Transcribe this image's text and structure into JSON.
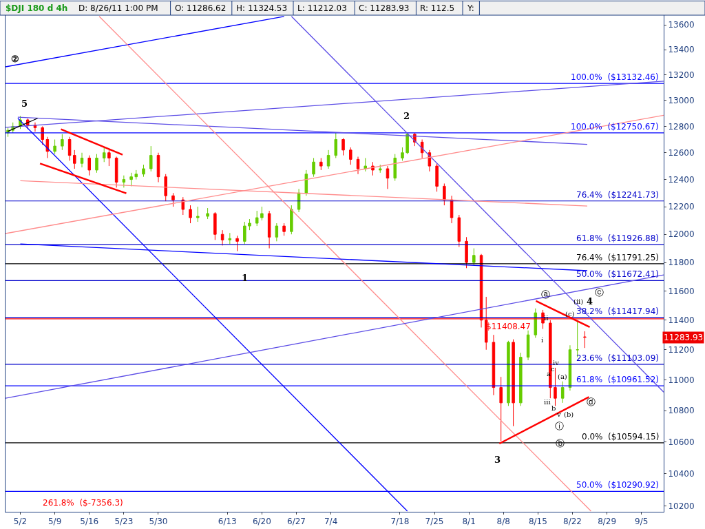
{
  "chart_data": {
    "type": "candlestick",
    "title": "$DJI 180 d 4h",
    "log": true,
    "ylim": [
      10166,
      13680
    ],
    "yticks": [
      10200,
      10400,
      10600,
      10800,
      11000,
      11200,
      11400,
      11600,
      11800,
      12000,
      12200,
      12400,
      12600,
      12800,
      13000,
      13200,
      13400,
      13600
    ],
    "xlim": [
      "--04-29",
      "--09-09T12:00"
    ],
    "xticks": [
      {
        "value": "--05-02",
        "label": "5/2"
      },
      {
        "value": "--05-09",
        "label": "5/9"
      },
      {
        "value": "--05-16",
        "label": "5/16"
      },
      {
        "value": "--05-23",
        "label": "5/23"
      },
      {
        "value": "--05-30",
        "label": "5/30"
      },
      {
        "value": "--06-13",
        "label": "6/13"
      },
      {
        "value": "--06-20",
        "label": "6/20"
      },
      {
        "value": "--06-27",
        "label": "6/27"
      },
      {
        "value": "--07-04",
        "label": "7/4"
      },
      {
        "value": "--07-18",
        "label": "7/18"
      },
      {
        "value": "--07-25",
        "label": "7/25"
      },
      {
        "value": "--08-01",
        "label": "8/1"
      },
      {
        "value": "--08-08",
        "label": "8/8"
      },
      {
        "value": "--08-15",
        "label": "8/15"
      },
      {
        "value": "--08-22",
        "label": "8/22"
      },
      {
        "value": "--08-29",
        "label": "8/29"
      },
      {
        "value": "--09-05",
        "label": "9/5"
      }
    ],
    "x": [
      "--04-29T12:00",
      "--04-30T12:00",
      "--05-02T00:00",
      "--05-03T12:00",
      "--05-05T00:00",
      "--05-06T12:00",
      "--05-07T12:00",
      "--05-09T00:00",
      "--05-10T12:00",
      "--05-12T00:00",
      "--05-13T00:00",
      "--05-14T12:00",
      "--05-16T00:00",
      "--05-17T12:00",
      "--05-19T00:00",
      "--05-20T00:00",
      "--05-21T12:00",
      "--05-23T00:00",
      "--05-24T12:00",
      "--05-25T12:00",
      "--05-27T00:00",
      "--05-28T12:00",
      "--05-30T00:00",
      "--05-31T12:00",
      "--06-02T00:00",
      "--06-04T00:00",
      "--06-05T12:00",
      "--06-07T00:00",
      "--06-09T00:00",
      "--06-10T12:00",
      "--06-12T00:00",
      "--06-13T12:00",
      "--06-15T00:00",
      "--06-16T12:00",
      "--06-17T12:00",
      "--06-19T00:00",
      "--06-20T00:00",
      "--06-21T12:00",
      "--06-23T00:00",
      "--06-24T12:00",
      "--06-26T00:00",
      "--06-27T12:00",
      "--06-29T00:00",
      "--06-30T12:00",
      "--07-02T00:00",
      "--07-03T12:00",
      "--07-05T00:00",
      "--07-06T12:00",
      "--07-08T00:00",
      "--07-09T12:00",
      "--07-11T00:00",
      "--07-12T12:00",
      "--07-14T00:00",
      "--07-15T12:00",
      "--07-17T00:00",
      "--07-18T12:00",
      "--07-19T12:00",
      "--07-21T00:00",
      "--07-22T12:00",
      "--07-24T00:00",
      "--07-25T12:00",
      "--07-27T00:00",
      "--07-28T12:00",
      "--07-30T00:00",
      "--07-31T12:00",
      "--08-02T00:00",
      "--08-03T12:00",
      "--08-04T12:00",
      "--08-06T00:00",
      "--08-07T12:00",
      "--08-09T00:00",
      "--08-10T00:00",
      "--08-11T12:00",
      "--08-13T00:00",
      "--08-14T12:00",
      "--08-16T00:00",
      "--08-17T12:00",
      "--08-18T12:00",
      "--08-20T00:00",
      "--08-21T12:00",
      "--08-23T00:00",
      "--08-24T12:00"
    ],
    "ohlc": [
      [
        12750,
        12790,
        12720,
        12770
      ],
      [
        12770,
        12830,
        12750,
        12800
      ],
      [
        12800,
        12880,
        12780,
        12850
      ],
      [
        12850,
        12860,
        12780,
        12810
      ],
      [
        12810,
        12830,
        12760,
        12790
      ],
      [
        12790,
        12800,
        12660,
        12700
      ],
      [
        12700,
        12720,
        12560,
        12610
      ],
      [
        12610,
        12700,
        12590,
        12650
      ],
      [
        12650,
        12740,
        12620,
        12700
      ],
      [
        12700,
        12720,
        12540,
        12580
      ],
      [
        12580,
        12620,
        12480,
        12520
      ],
      [
        12520,
        12600,
        12490,
        12560
      ],
      [
        12560,
        12580,
        12430,
        12470
      ],
      [
        12470,
        12590,
        12450,
        12560
      ],
      [
        12560,
        12640,
        12530,
        12600
      ],
      [
        12600,
        12620,
        12500,
        12560
      ],
      [
        12560,
        12570,
        12340,
        12380
      ],
      [
        12380,
        12430,
        12340,
        12400
      ],
      [
        12400,
        12450,
        12350,
        12420
      ],
      [
        12420,
        12470,
        12400,
        12440
      ],
      [
        12440,
        12510,
        12420,
        12480
      ],
      [
        12480,
        12650,
        12460,
        12580
      ],
      [
        12580,
        12600,
        12380,
        12420
      ],
      [
        12420,
        12440,
        12240,
        12280
      ],
      [
        12280,
        12300,
        12200,
        12250
      ],
      [
        12250,
        12270,
        12140,
        12180
      ],
      [
        12180,
        12210,
        12080,
        12120
      ],
      [
        12120,
        12200,
        12090,
        12130
      ],
      [
        12130,
        12190,
        12110,
        12150
      ],
      [
        12150,
        12160,
        11960,
        12000
      ],
      [
        12000,
        12030,
        11920,
        11960
      ],
      [
        11960,
        12010,
        11930,
        11970
      ],
      [
        11970,
        11990,
        11880,
        11950
      ],
      [
        11950,
        12090,
        11930,
        12060
      ],
      [
        12060,
        12110,
        12030,
        12080
      ],
      [
        12080,
        12170,
        12060,
        12120
      ],
      [
        12120,
        12200,
        12100,
        12150
      ],
      [
        12150,
        12170,
        11900,
        11980
      ],
      [
        11980,
        12080,
        11950,
        12060
      ],
      [
        12060,
        12080,
        11990,
        12020
      ],
      [
        12020,
        12210,
        12000,
        12180
      ],
      [
        12180,
        12330,
        12160,
        12300
      ],
      [
        12300,
        12470,
        12280,
        12440
      ],
      [
        12440,
        12560,
        12420,
        12530
      ],
      [
        12530,
        12560,
        12470,
        12500
      ],
      [
        12500,
        12620,
        12480,
        12580
      ],
      [
        12580,
        12750,
        12560,
        12700
      ],
      [
        12700,
        12710,
        12580,
        12620
      ],
      [
        12620,
        12640,
        12510,
        12550
      ],
      [
        12550,
        12570,
        12440,
        12480
      ],
      [
        12480,
        12560,
        12460,
        12500
      ],
      [
        12500,
        12530,
        12430,
        12470
      ],
      [
        12470,
        12510,
        12450,
        12480
      ],
      [
        12480,
        12500,
        12330,
        12410
      ],
      [
        12410,
        12590,
        12390,
        12560
      ],
      [
        12560,
        12640,
        12540,
        12600
      ],
      [
        12600,
        12750,
        12590,
        12740
      ],
      [
        12740,
        12750,
        12650,
        12680
      ],
      [
        12680,
        12700,
        12560,
        12600
      ],
      [
        12600,
        12620,
        12460,
        12500
      ],
      [
        12500,
        12520,
        12310,
        12350
      ],
      [
        12350,
        12370,
        12210,
        12250
      ],
      [
        12250,
        12280,
        12080,
        12120
      ],
      [
        12120,
        12140,
        11910,
        11950
      ],
      [
        11950,
        11980,
        11760,
        11800
      ],
      [
        11800,
        11900,
        11780,
        11850
      ],
      [
        11850,
        11860,
        11350,
        11400
      ],
      [
        11400,
        11560,
        11200,
        11250
      ],
      [
        11250,
        11300,
        10900,
        10950
      ],
      [
        10950,
        11020,
        10605,
        10850
      ],
      [
        10850,
        11260,
        10830,
        11250
      ],
      [
        11250,
        11270,
        10700,
        10850
      ],
      [
        10850,
        11180,
        10830,
        11150
      ],
      [
        11150,
        11330,
        11130,
        11300
      ],
      [
        11300,
        11480,
        11280,
        11450
      ],
      [
        11450,
        11470,
        11340,
        11380
      ],
      [
        11380,
        11400,
        10880,
        10950
      ],
      [
        10950,
        11080,
        10830,
        10880
      ],
      [
        10880,
        10990,
        10850,
        10950
      ],
      [
        10950,
        11230,
        10930,
        11200
      ],
      [
        11200,
        11400,
        11150,
        11200
      ],
      [
        11286.62,
        11324.53,
        11212.03,
        11283.93
      ]
    ],
    "colors": [
      "#66cc00",
      "#66cc00",
      "#66cc00",
      "#ff0000",
      "#ff0000",
      "#ff0000",
      "#ff0000",
      "#66cc00",
      "#66cc00",
      "#ff0000",
      "#ff0000",
      "#66cc00",
      "#ff0000",
      "#66cc00",
      "#66cc00",
      "#ff0000",
      "#ff0000",
      "#66cc00",
      "#66cc00",
      "#66cc00",
      "#66cc00",
      "#66cc00",
      "#ff0000",
      "#ff0000",
      "#ff0000",
      "#ff0000",
      "#ff0000",
      "#66cc00",
      "#66cc00",
      "#ff0000",
      "#ff0000",
      "#66cc00",
      "#ff0000",
      "#66cc00",
      "#66cc00",
      "#66cc00",
      "#66cc00",
      "#ff0000",
      "#66cc00",
      "#ff0000",
      "#66cc00",
      "#66cc00",
      "#66cc00",
      "#66cc00",
      "#ff0000",
      "#66cc00",
      "#66cc00",
      "#ff0000",
      "#ff0000",
      "#ff0000",
      "#66cc00",
      "#ff0000",
      "#66cc00",
      "#ff0000",
      "#66cc00",
      "#66cc00",
      "#66cc00",
      "#ff0000",
      "#ff0000",
      "#ff0000",
      "#ff0000",
      "#ff0000",
      "#ff0000",
      "#ff0000",
      "#ff0000",
      "#66cc00",
      "#ff0000",
      "#ff0000",
      "#ff0000",
      "#ff0000",
      "#66cc00",
      "#ff0000",
      "#66cc00",
      "#66cc00",
      "#66cc00",
      "#ff0000",
      "#ff0000",
      "#ff0000",
      "#66cc00",
      "#66cc00",
      "#66cc00",
      "#ff0000"
    ],
    "series": [
      {
        "type": "line",
        "x": [
          "--04-29",
          "--06-24T12:00"
        ],
        "values": [
          13264,
          13670
        ],
        "color": "#0000ff"
      },
      {
        "type": "line",
        "x": [
          "--06-26",
          "--09-09T12:00"
        ],
        "values": [
          13670,
          10920
        ],
        "color": "#5c4de6"
      },
      {
        "type": "line",
        "x": [
          "--05-01T12:00",
          "--07-19T12:00"
        ],
        "values": [
          12862,
          10170
        ],
        "color": "#0000ff"
      },
      {
        "type": "line",
        "x": [
          "--04-29",
          "--09-09T12:00"
        ],
        "values": [
          12793,
          13150
        ],
        "color": "#5c4de6"
      },
      {
        "type": "line",
        "x": [
          "--05-01T12:00",
          "--08-25"
        ],
        "values": [
          12871,
          12663
        ],
        "color": "#5c4de6"
      },
      {
        "type": "line",
        "x": [
          "--04-29",
          "--09-09T12:00"
        ],
        "values": [
          12006,
          12885
        ],
        "color": "#ff8c8c"
      },
      {
        "type": "line",
        "x": [
          "--05-02",
          "--08-25"
        ],
        "values": [
          12391,
          12205
        ],
        "color": "#ff8c8c"
      },
      {
        "type": "line",
        "x": [
          "--05-18",
          "--08-25T18:00"
        ],
        "values": [
          13670,
          10170
        ],
        "color": "#ff8c8c"
      },
      {
        "type": "line",
        "x": [
          "--05-02",
          "--08-25"
        ],
        "values": [
          11931,
          11742
        ],
        "color": "#0000ff"
      },
      {
        "type": "line",
        "x": [
          "--04-29",
          "--09-09T12:00"
        ],
        "values": [
          10880,
          11712
        ],
        "color": "#5c4de6"
      },
      {
        "type": "line",
        "x": [
          "--04-29T12:00",
          "--05-05T12:00"
        ],
        "values": [
          12762,
          12862
        ],
        "color": "#000000"
      },
      {
        "type": "line",
        "x": [
          "--05-10T06:00",
          "--05-22T18:00"
        ],
        "values": [
          12778,
          12585
        ],
        "color": "#ff0000"
      },
      {
        "type": "line",
        "x": [
          "--05-06",
          "--05-23T12:00"
        ],
        "values": [
          12519,
          12298
        ],
        "color": "#ff0000"
      },
      {
        "type": "line",
        "x": [
          "--08-14T14:00",
          "--08-25T12:00"
        ],
        "values": [
          11532,
          11353
        ],
        "color": "#ff0000"
      },
      {
        "type": "line",
        "x": [
          "--08-07T04:00",
          "--08-25T08:00"
        ],
        "values": [
          10589,
          10888
        ],
        "color": "#ff0000"
      }
    ],
    "ref_lines": [
      {
        "axis": "y",
        "value": 13132.46,
        "label": "100.0%  ($13132.46)",
        "color": "#0000ff"
      },
      {
        "axis": "y",
        "value": 12750.67,
        "label": "100.0%  ($12750.67)",
        "color": "#0000ff"
      },
      {
        "axis": "y",
        "value": 12241.73,
        "label": "76.4%  ($12241.73)",
        "color": "#0000cc"
      },
      {
        "axis": "y",
        "value": 11926.88,
        "label": "61.8%  ($11926.88)",
        "color": "#0000cc"
      },
      {
        "axis": "y",
        "value": 11791.25,
        "label": "76.4%  ($11791.25)",
        "color": "#000000"
      },
      {
        "axis": "y",
        "value": 11672.41,
        "label": "50.0%  ($11672.41)",
        "color": "#0000cc"
      },
      {
        "axis": "y",
        "value": 11417.94,
        "label": "38.2%  ($11417.94)",
        "color": "#0000cc"
      },
      {
        "axis": "y",
        "value": 11408.47,
        "label": "$11408.47",
        "color": "#ff0000"
      },
      {
        "axis": "y",
        "value": 11103.09,
        "label": "23.6%  ($11103.09)",
        "color": "#0000cc"
      },
      {
        "axis": "y",
        "value": 10961.52,
        "label": "61.8%  ($10961.52)",
        "color": "#0000ff"
      },
      {
        "axis": "y",
        "value": 10594.15,
        "label": "0.0%  ($10594.15)",
        "color": "#000000"
      },
      {
        "axis": "y",
        "value": 10290.92,
        "label": "50.0%  ($10290.92)",
        "color": "#0000ff"
      }
    ],
    "annotations": [
      "D: 8/26/11 1:00 PM",
      "O: 11286.62",
      "H: 11324.53",
      "L: 11212.03",
      "C: 11283.93",
      "R: 112.5",
      "Y:",
      "11283.93",
      "②",
      "5",
      "2",
      "1",
      "3",
      "ⓐ",
      "ⓒ",
      "ⓓ",
      "ⓑ",
      "(ii)",
      "4",
      "(c)",
      "ii",
      "i",
      "iv",
      "c",
      "a",
      "(a)",
      "iii",
      "b",
      "v",
      "(b)",
      "ⓘ",
      "261.8%  ($-7356.3)"
    ]
  }
}
